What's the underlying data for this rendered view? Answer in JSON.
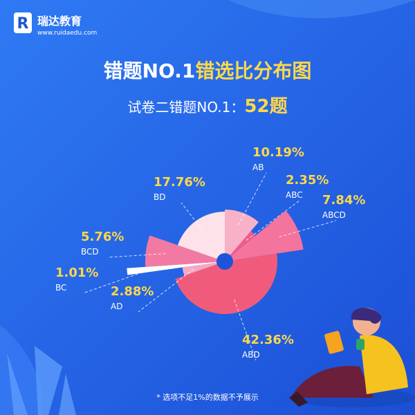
{
  "header": {
    "brand": "瑞达教育",
    "url": "www.ruidaedu.com"
  },
  "chart_data": {
    "type": "pie",
    "title_parts": [
      "错题NO.1",
      "错选比分布图"
    ],
    "subtitle_parts": [
      "试卷二错题NO.1：",
      "52题"
    ],
    "categories": [
      "AB",
      "ABC",
      "ABCD",
      "ABD",
      "AD",
      "BC",
      "BCD",
      "BD"
    ],
    "values": [
      10.19,
      2.35,
      7.84,
      42.36,
      2.88,
      1.01,
      5.76,
      17.76
    ],
    "value_labels": [
      "10.19%",
      "2.35%",
      "7.84%",
      "42.36%",
      "2.88%",
      "1.01%",
      "5.76%",
      "17.76%"
    ],
    "colors": [
      "#f8b2c8",
      "#f25a8c",
      "#f3749d",
      "#f15b7b",
      "#f7a7c2",
      "#ffffff",
      "#f27aa2",
      "#fde2ea"
    ],
    "footnote": "* 选项不足1%的数据不予展示"
  }
}
